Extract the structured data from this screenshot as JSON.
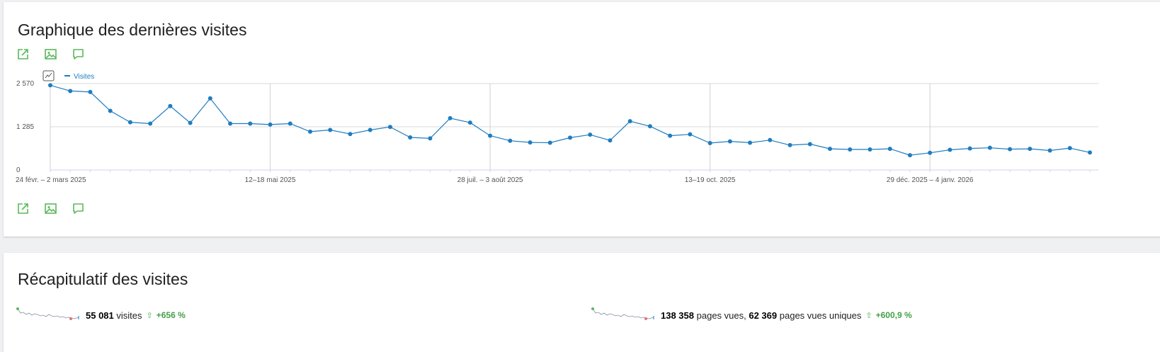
{
  "visits_chart": {
    "title": "Graphique des dernières visites",
    "icons": [
      "export-icon",
      "image-icon",
      "annotation-icon"
    ],
    "legend_label": "Visites"
  },
  "chart_data": {
    "type": "line",
    "title": "",
    "ylabel": "",
    "xlabel": "",
    "ylim": [
      0,
      2570
    ],
    "yticks": [
      "0",
      "1 285",
      "2 570"
    ],
    "x_tick_labels": [
      {
        "index": 0,
        "label": "24 févr. – 2 mars 2025"
      },
      {
        "index": 11,
        "label": "12–18 mai 2025"
      },
      {
        "index": 22,
        "label": "28 juil. – 3 août 2025"
      },
      {
        "index": 33,
        "label": "13–19 oct. 2025"
      },
      {
        "index": 44,
        "label": "29 déc. 2025 – 4 janv. 2026"
      }
    ],
    "grid": true,
    "legend_position": "top-left",
    "series_color": "#1f7dbf",
    "series": [
      {
        "name": "Visites",
        "values": [
          2520,
          2350,
          2320,
          1760,
          1420,
          1380,
          1900,
          1400,
          2130,
          1380,
          1380,
          1350,
          1380,
          1140,
          1190,
          1070,
          1190,
          1280,
          970,
          940,
          1540,
          1410,
          1020,
          870,
          820,
          810,
          960,
          1050,
          880,
          1450,
          1300,
          1020,
          1060,
          800,
          850,
          810,
          890,
          740,
          770,
          630,
          610,
          610,
          630,
          440,
          510,
          600,
          640,
          660,
          620,
          630,
          580,
          650,
          520
        ]
      }
    ]
  },
  "summary": {
    "title": "Récapitulatif des visites",
    "visits_value": "55 081",
    "visits_label": "visites",
    "visits_change": "+656 %",
    "pageviews_value": "138 358",
    "pageviews_label": "pages vues,",
    "unique_pageviews_value": "62 369",
    "unique_pageviews_label": "pages vues uniques",
    "pageviews_change": "+600,9 %",
    "trend_icon": "up-arrow-icon",
    "positive_color": "#43a047"
  }
}
